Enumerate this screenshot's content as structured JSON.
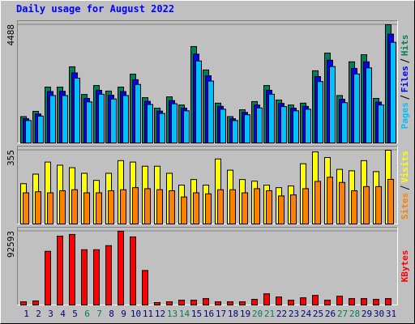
{
  "chart_data": [
    {
      "type": "bar",
      "title": "Daily usage for August 2022",
      "ylim": [
        0,
        4488
      ],
      "yticks": [
        4488
      ],
      "series": [
        {
          "name": "Hits",
          "color": "#00805c",
          "values": [
            1000,
            1200,
            2120,
            2120,
            2890,
            1840,
            2180,
            1970,
            2120,
            2610,
            1720,
            1320,
            1750,
            1440,
            3660,
            2770,
            1510,
            1000,
            1260,
            1570,
            2180,
            1630,
            1440,
            1510,
            2740,
            3410,
            1800,
            3080,
            3350,
            1690,
            4488
          ]
        },
        {
          "name": "Files",
          "color": "#0000ff",
          "values": [
            920,
            1100,
            1950,
            1960,
            2660,
            1690,
            2000,
            1810,
            1950,
            2400,
            1580,
            1210,
            1610,
            1320,
            3370,
            2550,
            1390,
            920,
            1160,
            1440,
            2000,
            1500,
            1320,
            1390,
            2520,
            3140,
            1660,
            2830,
            3080,
            1550,
            4130
          ]
        },
        {
          "name": "Pages",
          "color": "#00c0ff",
          "values": [
            850,
            1020,
            1800,
            1800,
            2460,
            1560,
            1850,
            1670,
            1800,
            2220,
            1460,
            1120,
            1490,
            1220,
            3110,
            2350,
            1280,
            850,
            1070,
            1330,
            1850,
            1380,
            1220,
            1280,
            2330,
            2900,
            1530,
            2620,
            2850,
            1440,
            3820
          ]
        }
      ]
    },
    {
      "type": "bar",
      "ylim": [
        0,
        355
      ],
      "yticks": [
        355
      ],
      "series": [
        {
          "name": "Visits",
          "color": "#ffff00",
          "values": [
            194,
            240,
            298,
            283,
            271,
            244,
            210,
            244,
            305,
            298,
            278,
            278,
            244,
            187,
            214,
            187,
            313,
            259,
            214,
            206,
            187,
            175,
            183,
            290,
            347,
            320,
            263,
            256,
            305,
            252,
            355
          ]
        },
        {
          "name": "Sites",
          "color": "#ff8000",
          "values": [
            150,
            155,
            150,
            160,
            165,
            150,
            150,
            160,
            165,
            175,
            170,
            165,
            160,
            130,
            150,
            145,
            165,
            165,
            150,
            170,
            160,
            135,
            140,
            170,
            205,
            225,
            200,
            160,
            180,
            180,
            215
          ]
        }
      ]
    },
    {
      "type": "bar",
      "ylim": [
        0,
        92593
      ],
      "yticks": [
        92593
      ],
      "categories": [
        "1",
        "2",
        "3",
        "4",
        "5",
        "6",
        "7",
        "8",
        "9",
        "10",
        "11",
        "12",
        "13",
        "14",
        "15",
        "16",
        "17",
        "18",
        "19",
        "20",
        "21",
        "22",
        "23",
        "24",
        "25",
        "26",
        "27",
        "28",
        "29",
        "30",
        "31"
      ],
      "category_colors": [
        "#000080",
        "#000080",
        "#000080",
        "#000080",
        "#000080",
        "#00805c",
        "#00805c",
        "#000080",
        "#000080",
        "#000080",
        "#000080",
        "#000080",
        "#00805c",
        "#00805c",
        "#000080",
        "#000080",
        "#000080",
        "#000080",
        "#000080",
        "#00805c",
        "#00805c",
        "#000080",
        "#000080",
        "#000080",
        "#000080",
        "#000080",
        "#00805c",
        "#00805c",
        "#000080",
        "#000080",
        "#000080"
      ],
      "series": [
        {
          "name": "KBytes",
          "color": "#ff0000",
          "values": [
            4000,
            5000,
            67400,
            86500,
            88600,
            69400,
            69400,
            74500,
            92593,
            85500,
            43300,
            3000,
            4000,
            6000,
            6000,
            8000,
            4000,
            4000,
            4000,
            7000,
            14000,
            10000,
            6000,
            9000,
            12000,
            6000,
            11000,
            8000,
            8000,
            7000,
            8000
          ]
        }
      ]
    }
  ]
}
